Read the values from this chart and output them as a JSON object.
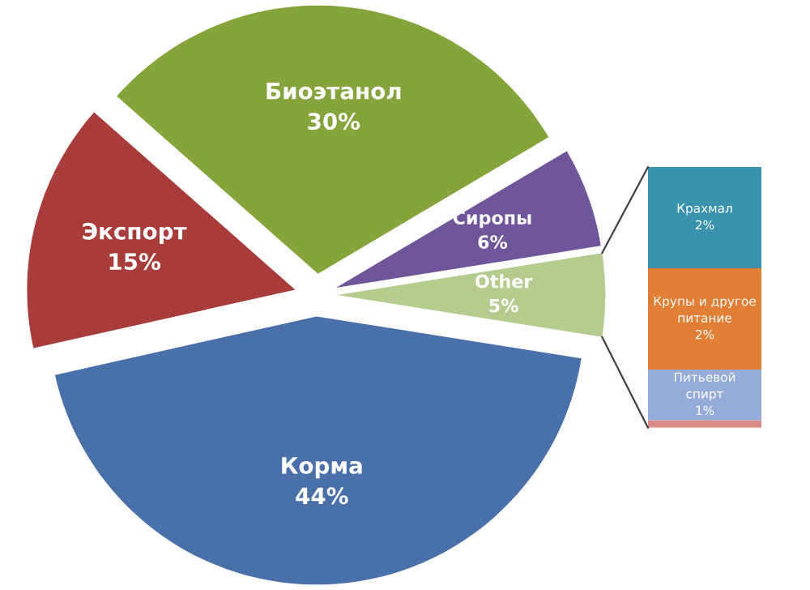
{
  "chart_data": [
    {
      "type": "pie",
      "categories": [
        "Other",
        "Сиропы",
        "Биоэтанол",
        "Экспорт",
        "Корма"
      ],
      "values": [
        5,
        6,
        30,
        15,
        44
      ],
      "value_labels": [
        "5%",
        "6%",
        "30%",
        "15%",
        "44%"
      ],
      "colors": [
        "#b5cc8e",
        "#6f5599",
        "#86a43c",
        "#a83c3a",
        "#4a70aa"
      ]
    },
    {
      "type": "bar",
      "stacked": true,
      "categories": [
        null
      ],
      "series": [
        {
          "color": "#d98a86",
          "values": [
            0.15
          ]
        },
        {
          "name": "Питьевой спирт",
          "color": "#95acd8",
          "values": [
            1
          ],
          "value_labels": [
            "1%"
          ]
        },
        {
          "name": "Крупы и другое питание",
          "color": "#e07f35",
          "values": [
            2
          ],
          "value_labels": [
            "2%"
          ]
        },
        {
          "name": "Крахмал",
          "color": "#3a93ad",
          "values": [
            2
          ],
          "value_labels": [
            "2%"
          ]
        }
      ]
    }
  ]
}
